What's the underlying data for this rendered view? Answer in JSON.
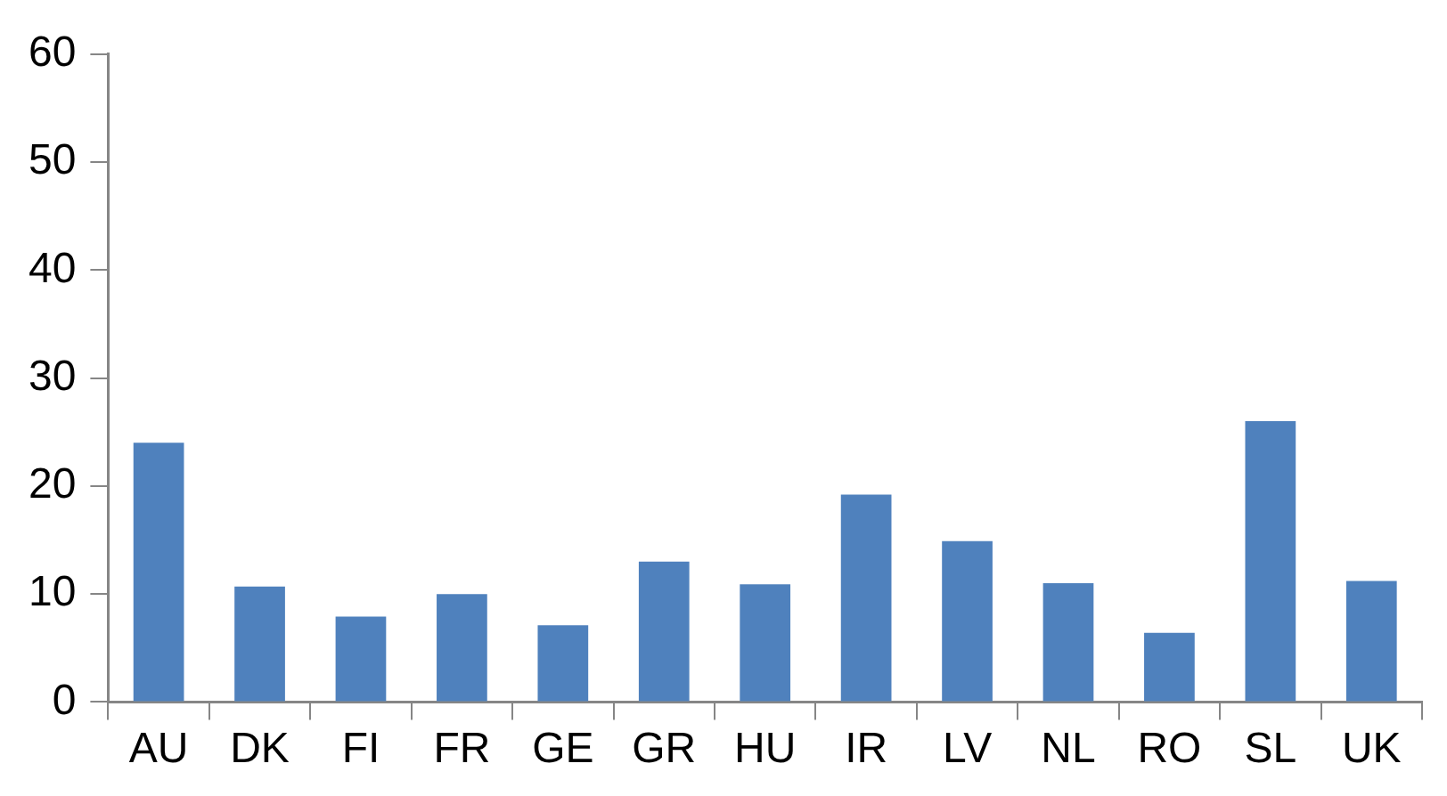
{
  "chart_data": {
    "type": "bar",
    "categories": [
      "AU",
      "DK",
      "FI",
      "FR",
      "GE",
      "GR",
      "HU",
      "IR",
      "LV",
      "NL",
      "RO",
      "SL",
      "UK"
    ],
    "values": [
      24,
      10.7,
      7.9,
      10,
      7.1,
      13,
      10.9,
      19.2,
      14.9,
      11,
      6.4,
      26,
      11.2
    ],
    "color": "#4f81bd",
    "ylim": [
      0,
      60
    ],
    "yticks": [
      0,
      10,
      20,
      30,
      40,
      50,
      60
    ],
    "grid": false,
    "legend": false
  }
}
